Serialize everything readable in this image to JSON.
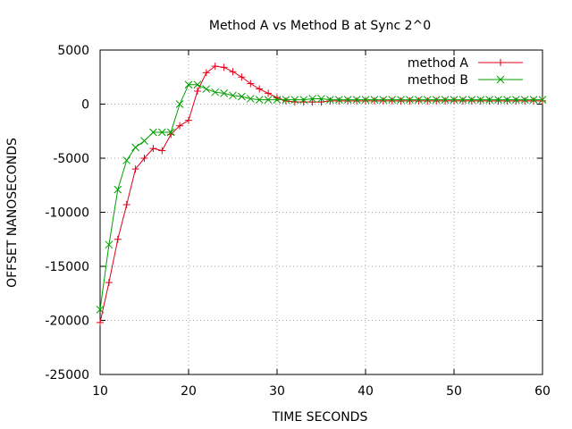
{
  "chart_data": {
    "type": "line",
    "title": "Method A vs Method B at Sync 2^0",
    "xlabel": "TIME SECONDS",
    "ylabel": "OFFSET NANOSECONDS",
    "xlim": [
      10,
      60
    ],
    "ylim": [
      -25000,
      5000
    ],
    "xticks": [
      10,
      20,
      30,
      40,
      50,
      60
    ],
    "yticks": [
      -25000,
      -20000,
      -15000,
      -10000,
      -5000,
      0,
      5000
    ],
    "grid": true,
    "legend": "top-right",
    "series": [
      {
        "name": "method A",
        "color": "#e0001a",
        "marker": "plus",
        "x": [
          10,
          11,
          12,
          13,
          14,
          15,
          16,
          17,
          18,
          19,
          20,
          21,
          22,
          23,
          24,
          25,
          26,
          27,
          28,
          29,
          30,
          31,
          32,
          33,
          34,
          35,
          36,
          37,
          38,
          39,
          40,
          41,
          42,
          43,
          44,
          45,
          46,
          47,
          48,
          49,
          50,
          51,
          52,
          53,
          54,
          55,
          56,
          57,
          58,
          59,
          60
        ],
        "y": [
          -20200,
          -16500,
          -12500,
          -9300,
          -6000,
          -5000,
          -4100,
          -4300,
          -2800,
          -2000,
          -1500,
          1200,
          2900,
          3500,
          3400,
          3000,
          2500,
          1900,
          1400,
          1000,
          600,
          300,
          200,
          200,
          200,
          200,
          300,
          300,
          300,
          300,
          300,
          300,
          300,
          300,
          300,
          300,
          300,
          300,
          300,
          300,
          300,
          300,
          300,
          300,
          300,
          300,
          300,
          300,
          300,
          300,
          300
        ]
      },
      {
        "name": "method B",
        "color": "#00a000",
        "marker": "x",
        "x": [
          10,
          11,
          12,
          13,
          14,
          15,
          16,
          17,
          18,
          19,
          20,
          21,
          22,
          23,
          24,
          25,
          26,
          27,
          28,
          29,
          30,
          31,
          32,
          33,
          34,
          35,
          36,
          37,
          38,
          39,
          40,
          41,
          42,
          43,
          44,
          45,
          46,
          47,
          48,
          49,
          50,
          51,
          52,
          53,
          54,
          55,
          56,
          57,
          58,
          59,
          60
        ],
        "y": [
          -19000,
          -13000,
          -7900,
          -5200,
          -4000,
          -3400,
          -2600,
          -2600,
          -2600,
          0,
          1800,
          1800,
          1400,
          1100,
          1000,
          800,
          700,
          500,
          400,
          400,
          400,
          400,
          400,
          400,
          500,
          500,
          400,
          400,
          400,
          400,
          400,
          400,
          400,
          400,
          400,
          400,
          400,
          400,
          400,
          400,
          400,
          400,
          400,
          400,
          400,
          400,
          400,
          400,
          400,
          400,
          400
        ]
      }
    ]
  }
}
